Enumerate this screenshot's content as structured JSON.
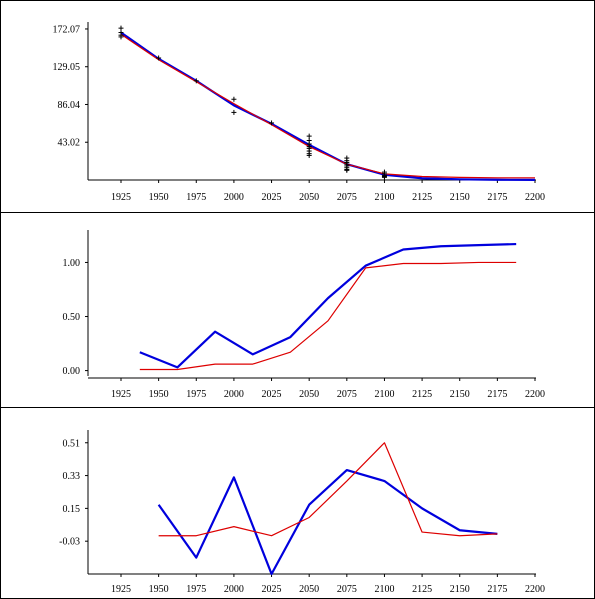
{
  "chart_data": [
    {
      "type": "line",
      "panel": "top",
      "x_ticks": [
        "1925",
        "1950",
        "1975",
        "2000",
        "2025",
        "2050",
        "2075",
        "2100",
        "2125",
        "2150",
        "2175",
        "2200"
      ],
      "y_ticks": [
        "172.07",
        "129.05",
        "86.04",
        "43.02"
      ],
      "xlim": [
        1900,
        2200
      ],
      "ylim": [
        0,
        180
      ],
      "series": [
        {
          "color": "#0000dd",
          "x": [
            1925,
            1950,
            1975,
            2000,
            2025,
            2050,
            2075,
            2100,
            2125,
            2150,
            2175,
            2200
          ],
          "y": [
            168,
            138,
            113,
            85,
            64,
            40,
            18,
            6,
            2,
            0.8,
            0.3,
            0.1
          ]
        },
        {
          "color": "#dd0000",
          "x": [
            1925,
            1950,
            1975,
            2000,
            2025,
            2050,
            2075,
            2100,
            2125,
            2150,
            2175,
            2200
          ],
          "y": [
            166,
            137,
            112,
            87,
            63,
            38,
            18,
            7,
            4,
            3,
            2.5,
            2.5
          ]
        }
      ],
      "points": {
        "color": "#000000",
        "x": [
          1925,
          1925,
          1925,
          1925,
          1950,
          1975,
          2000,
          2000,
          2025,
          2050,
          2050,
          2050,
          2050,
          2050,
          2050,
          2050,
          2050,
          2075,
          2075,
          2075,
          2075,
          2075,
          2075,
          2075,
          2075,
          2100,
          2100,
          2100,
          2100,
          2100
        ],
        "y": [
          173,
          168,
          165,
          163,
          139,
          113,
          92,
          77,
          65,
          50,
          45,
          41,
          38,
          36,
          33,
          30,
          28,
          25,
          22,
          20,
          18,
          16,
          14,
          12,
          11,
          9,
          7,
          5,
          4,
          3
        ]
      }
    },
    {
      "type": "line",
      "panel": "middle",
      "x_ticks": [
        "1925",
        "1950",
        "1975",
        "2000",
        "2025",
        "2050",
        "2075",
        "2100",
        "2125",
        "2150",
        "2175",
        "2200"
      ],
      "y_ticks": [
        "1.00",
        "0.50",
        "0.00"
      ],
      "xlim": [
        1900,
        2200
      ],
      "ylim": [
        -0.05,
        1.3
      ],
      "series": [
        {
          "color": "#0000dd",
          "x": [
            1937.5,
            1962.5,
            1987.5,
            2012.5,
            2037.5,
            2062.5,
            2087.5,
            2112.5,
            2137.5,
            2162.5,
            2187.5
          ],
          "y": [
            0.17,
            0.03,
            0.36,
            0.15,
            0.31,
            0.67,
            0.97,
            1.12,
            1.15,
            1.16,
            1.17
          ]
        },
        {
          "color": "#dd0000",
          "x": [
            1937.5,
            1962.5,
            1987.5,
            2012.5,
            2037.5,
            2062.5,
            2087.5,
            2112.5,
            2137.5,
            2162.5,
            2187.5
          ],
          "y": [
            0.01,
            0.01,
            0.06,
            0.06,
            0.17,
            0.46,
            0.95,
            0.99,
            0.99,
            1.0,
            1.0
          ]
        }
      ]
    },
    {
      "type": "line",
      "panel": "bottom",
      "x_ticks": [
        "1925",
        "1950",
        "1975",
        "2000",
        "2025",
        "2050",
        "2075",
        "2100",
        "2125",
        "2150",
        "2175",
        "2200"
      ],
      "y_ticks": [
        "0.51",
        "0.33",
        "0.15",
        "-0.03"
      ],
      "xlim": [
        1900,
        2200
      ],
      "ylim": [
        -0.21,
        0.58
      ],
      "series": [
        {
          "color": "#0000dd",
          "x": [
            1950,
            1975,
            2000,
            2025,
            2050,
            2075,
            2100,
            2125,
            2150,
            2175
          ],
          "y": [
            0.17,
            -0.12,
            0.32,
            -0.21,
            0.17,
            0.36,
            0.3,
            0.15,
            0.03,
            0.01
          ]
        },
        {
          "color": "#dd0000",
          "x": [
            1950,
            1975,
            2000,
            2025,
            2050,
            2075,
            2100,
            2125,
            2150,
            2175
          ],
          "y": [
            0.0,
            0.0,
            0.05,
            0.0,
            0.1,
            0.3,
            0.51,
            0.02,
            0.0,
            0.01
          ]
        }
      ]
    }
  ]
}
